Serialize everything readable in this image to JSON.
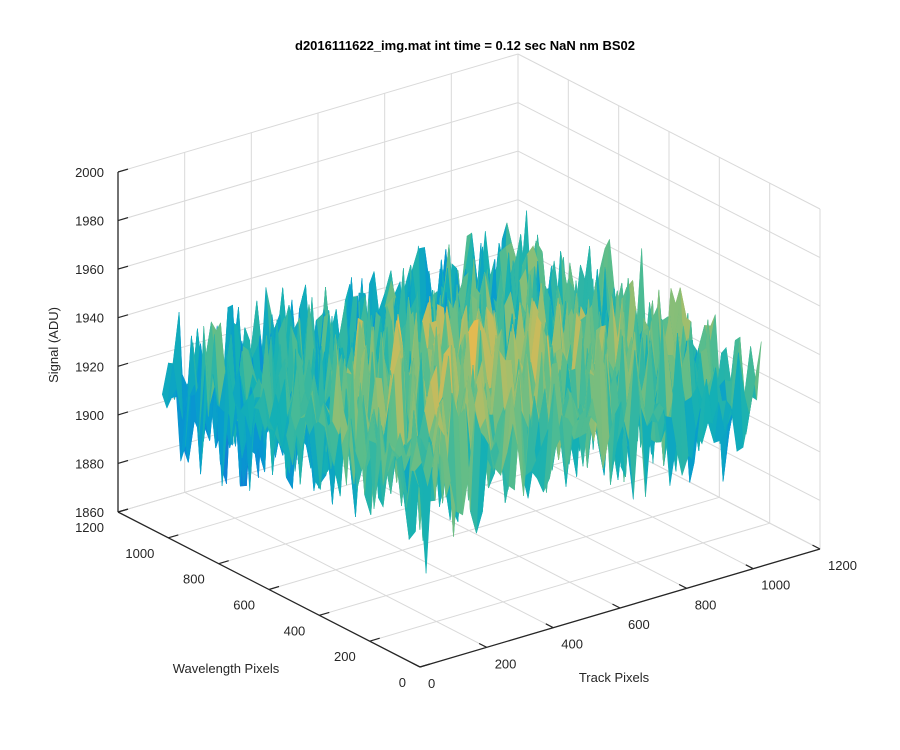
{
  "chart_data": {
    "type": "surface",
    "title": "d2016111622_img.mat int time = 0.12 sec  NaN nm BS02",
    "xlabel": "Track Pixels",
    "ylabel": "Wavelength Pixels",
    "zlabel": "Signal (ADU)",
    "xlim": [
      0,
      1200
    ],
    "ylim": [
      0,
      1200
    ],
    "zlim": [
      1860,
      2000
    ],
    "xticks": [
      "0",
      "200",
      "400",
      "600",
      "800",
      "1000",
      "1200"
    ],
    "yticks": [
      "0",
      "200",
      "400",
      "600",
      "800",
      "1000",
      "1200"
    ],
    "zticks": [
      "1860",
      "1880",
      "1900",
      "1920",
      "1940",
      "1960",
      "1980",
      "2000"
    ],
    "data_extent": {
      "x": [
        0,
        1024
      ],
      "y": [
        0,
        1024
      ]
    },
    "signal": {
      "mean": 1928,
      "typical_range": [
        1890,
        1965
      ],
      "min_approx": 1872,
      "max_approx": 1988
    },
    "grid": true,
    "colormap": "parula"
  }
}
